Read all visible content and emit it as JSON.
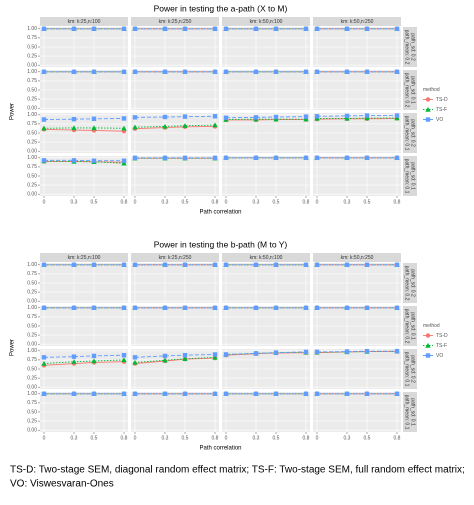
{
  "chart_data": [
    {
      "type": "line",
      "title": "Power in testing the a-path (X to M)",
      "x_label": "Path correlation",
      "y_label": "Power",
      "col_labels": [
        "km: k:25,n:100",
        "km: k:25,n:250",
        "km: k:50,n:100",
        "km: k:50,n:250"
      ],
      "row_labels": [
        [
          "path_mean: 0.2",
          "path_sd: 0.2"
        ],
        [
          "path_mean: 0.2",
          "path_sd: 0.1"
        ],
        [
          "path_mean: 0.1",
          "path_sd: 0.2"
        ],
        [
          "path_mean: 0.1",
          "path_sd: 0.1"
        ]
      ],
      "x": [
        0,
        0.3,
        0.5,
        0.8
      ],
      "xticks": [
        0,
        0.3,
        0.5,
        0.8
      ],
      "xlim": [
        -0.04,
        0.84
      ],
      "ylim": [
        -0.05,
        1.05
      ],
      "yticks": [
        {
          "value": 0,
          "label": "0.00"
        },
        {
          "value": 0.25,
          "label": "0.25"
        },
        {
          "value": 0.5,
          "label": "0.50"
        },
        {
          "value": 0.75,
          "label": "0.75"
        },
        {
          "value": 1,
          "label": "1.00"
        }
      ],
      "legend_title": "method",
      "series": [
        {
          "name": "TS-D",
          "color": "#f8766d",
          "marker": "circle",
          "linetype": "solid",
          "values": [
            [
              [
                1,
                1,
                1,
                1
              ],
              [
                1,
                1,
                1,
                1
              ],
              [
                1,
                1,
                1,
                1
              ],
              [
                1,
                1,
                1,
                1
              ]
            ],
            [
              [
                1,
                1,
                1,
                1
              ],
              [
                1,
                1,
                1,
                1
              ],
              [
                1,
                1,
                1,
                1
              ],
              [
                1,
                1,
                1,
                1
              ]
            ],
            [
              [
                0.6,
                0.58,
                0.57,
                0.55
              ],
              [
                0.62,
                0.65,
                0.67,
                0.68
              ],
              [
                0.86,
                0.86,
                0.87,
                0.87
              ],
              [
                0.88,
                0.89,
                0.89,
                0.9
              ]
            ],
            [
              [
                0.9,
                0.9,
                0.89,
                0.88
              ],
              [
                0.99,
                0.99,
                0.99,
                0.99
              ],
              [
                1,
                1,
                1,
                1
              ],
              [
                1,
                1,
                1,
                1
              ]
            ]
          ]
        },
        {
          "name": "TS-F",
          "color": "#00ba38",
          "marker": "triangle",
          "linetype": "dotted",
          "values": [
            [
              [
                1,
                1,
                1,
                1
              ],
              [
                1,
                1,
                1,
                1
              ],
              [
                1,
                1,
                1,
                1
              ],
              [
                1,
                1,
                1,
                1
              ]
            ],
            [
              [
                1,
                1,
                1,
                1
              ],
              [
                1,
                1,
                1,
                1
              ],
              [
                1,
                1,
                1,
                1
              ],
              [
                1,
                1,
                1,
                1
              ]
            ],
            [
              [
                0.63,
                0.64,
                0.64,
                0.63
              ],
              [
                0.66,
                0.68,
                0.7,
                0.72
              ],
              [
                0.87,
                0.88,
                0.88,
                0.88
              ],
              [
                0.9,
                0.9,
                0.91,
                0.91
              ]
            ],
            [
              [
                0.91,
                0.9,
                0.89,
                0.85
              ],
              [
                0.99,
                0.99,
                0.99,
                0.99
              ],
              [
                1,
                1,
                1,
                1
              ],
              [
                1,
                1,
                1,
                1
              ]
            ]
          ]
        },
        {
          "name": "VO",
          "color": "#619cff",
          "marker": "square",
          "linetype": "dashed",
          "values": [
            [
              [
                1,
                1,
                1,
                1
              ],
              [
                1,
                1,
                1,
                1
              ],
              [
                1,
                1,
                1,
                1
              ],
              [
                1,
                1,
                1,
                1
              ]
            ],
            [
              [
                1,
                1,
                1,
                1
              ],
              [
                1,
                1,
                1,
                1
              ],
              [
                1,
                1,
                1,
                1
              ],
              [
                1,
                1,
                1,
                1
              ]
            ],
            [
              [
                0.87,
                0.88,
                0.89,
                0.9
              ],
              [
                0.93,
                0.94,
                0.95,
                0.96
              ],
              [
                0.92,
                0.93,
                0.94,
                0.95
              ],
              [
                0.96,
                0.97,
                0.98,
                0.98
              ]
            ],
            [
              [
                0.93,
                0.93,
                0.92,
                0.92
              ],
              [
                1,
                1,
                1,
                1
              ],
              [
                1,
                1,
                1,
                1
              ],
              [
                1,
                1,
                1,
                1
              ]
            ]
          ]
        }
      ]
    },
    {
      "type": "line",
      "title": "Power in testing the b-path (M to Y)",
      "x_label": "Path correlation",
      "y_label": "Power",
      "col_labels": [
        "km: k:25,n:100",
        "km: k:25,n:250",
        "km: k:50,n:100",
        "km: k:50,n:250"
      ],
      "row_labels": [
        [
          "path_mean: 0.2",
          "path_sd: 0.2"
        ],
        [
          "path_mean: 0.2",
          "path_sd: 0.1"
        ],
        [
          "path_mean: 0.1",
          "path_sd: 0.2"
        ],
        [
          "path_mean: 0.1",
          "path_sd: 0.1"
        ]
      ],
      "x": [
        0,
        0.3,
        0.5,
        0.8
      ],
      "xticks": [
        0,
        0.3,
        0.5,
        0.8
      ],
      "xlim": [
        -0.04,
        0.84
      ],
      "ylim": [
        -0.05,
        1.05
      ],
      "yticks": [
        {
          "value": 0,
          "label": "0.00"
        },
        {
          "value": 0.25,
          "label": "0.25"
        },
        {
          "value": 0.5,
          "label": "0.50"
        },
        {
          "value": 0.75,
          "label": "0.75"
        },
        {
          "value": 1,
          "label": "1.00"
        }
      ],
      "legend_title": "method",
      "series": [
        {
          "name": "TS-D",
          "color": "#f8766d",
          "marker": "circle",
          "linetype": "solid",
          "values": [
            [
              [
                1,
                1,
                1,
                1
              ],
              [
                1,
                1,
                1,
                1
              ],
              [
                1,
                1,
                1,
                1
              ],
              [
                1,
                1,
                1,
                1
              ]
            ],
            [
              [
                1,
                1,
                1,
                1
              ],
              [
                1,
                1,
                1,
                1
              ],
              [
                1,
                1,
                1,
                1
              ],
              [
                1,
                1,
                1,
                1
              ]
            ],
            [
              [
                0.6,
                0.65,
                0.68,
                0.7
              ],
              [
                0.65,
                0.72,
                0.77,
                0.8
              ],
              [
                0.88,
                0.92,
                0.94,
                0.95
              ],
              [
                0.95,
                0.97,
                0.98,
                0.98
              ]
            ],
            [
              [
                1,
                1,
                1,
                1
              ],
              [
                1,
                1,
                1,
                1
              ],
              [
                1,
                1,
                1,
                1
              ],
              [
                1,
                1,
                1,
                1
              ]
            ]
          ]
        },
        {
          "name": "TS-F",
          "color": "#00ba38",
          "marker": "triangle",
          "linetype": "dotted",
          "values": [
            [
              [
                1,
                1,
                1,
                1
              ],
              [
                1,
                1,
                1,
                1
              ],
              [
                1,
                1,
                1,
                1
              ],
              [
                1,
                1,
                1,
                1
              ]
            ],
            [
              [
                1,
                1,
                1,
                1
              ],
              [
                1,
                1,
                1,
                1
              ],
              [
                1,
                1,
                1,
                1
              ],
              [
                1,
                1,
                1,
                1
              ]
            ],
            [
              [
                0.65,
                0.7,
                0.72,
                0.75
              ],
              [
                0.68,
                0.74,
                0.78,
                0.82
              ],
              [
                0.9,
                0.93,
                0.95,
                0.96
              ],
              [
                0.96,
                0.97,
                0.98,
                0.99
              ]
            ],
            [
              [
                1,
                1,
                1,
                1
              ],
              [
                1,
                1,
                1,
                1
              ],
              [
                1,
                1,
                1,
                1
              ],
              [
                1,
                1,
                1,
                1
              ]
            ]
          ]
        },
        {
          "name": "VO",
          "color": "#619cff",
          "marker": "square",
          "linetype": "dashed",
          "values": [
            [
              [
                1,
                1,
                1,
                1
              ],
              [
                1,
                1,
                1,
                1
              ],
              [
                1,
                1,
                1,
                1
              ],
              [
                1,
                1,
                1,
                1
              ]
            ],
            [
              [
                1,
                1,
                1,
                1
              ],
              [
                1,
                1,
                1,
                1
              ],
              [
                1,
                1,
                1,
                1
              ],
              [
                1,
                1,
                1,
                1
              ]
            ],
            [
              [
                0.82,
                0.84,
                0.86,
                0.88
              ],
              [
                0.82,
                0.86,
                0.88,
                0.9
              ],
              [
                0.9,
                0.93,
                0.95,
                0.97
              ],
              [
                0.97,
                0.98,
                0.99,
                0.99
              ]
            ],
            [
              [
                1,
                1,
                1,
                1
              ],
              [
                1,
                1,
                1,
                1
              ],
              [
                1,
                1,
                1,
                1
              ],
              [
                1,
                1,
                1,
                1
              ]
            ]
          ]
        }
      ]
    }
  ],
  "caption": [
    "TS-D: Two-stage SEM, diagonal random effect matrix; TS-F: Two-stage SEM, full random effect matrix;",
    "VO: Viswesvaran-Ones"
  ]
}
